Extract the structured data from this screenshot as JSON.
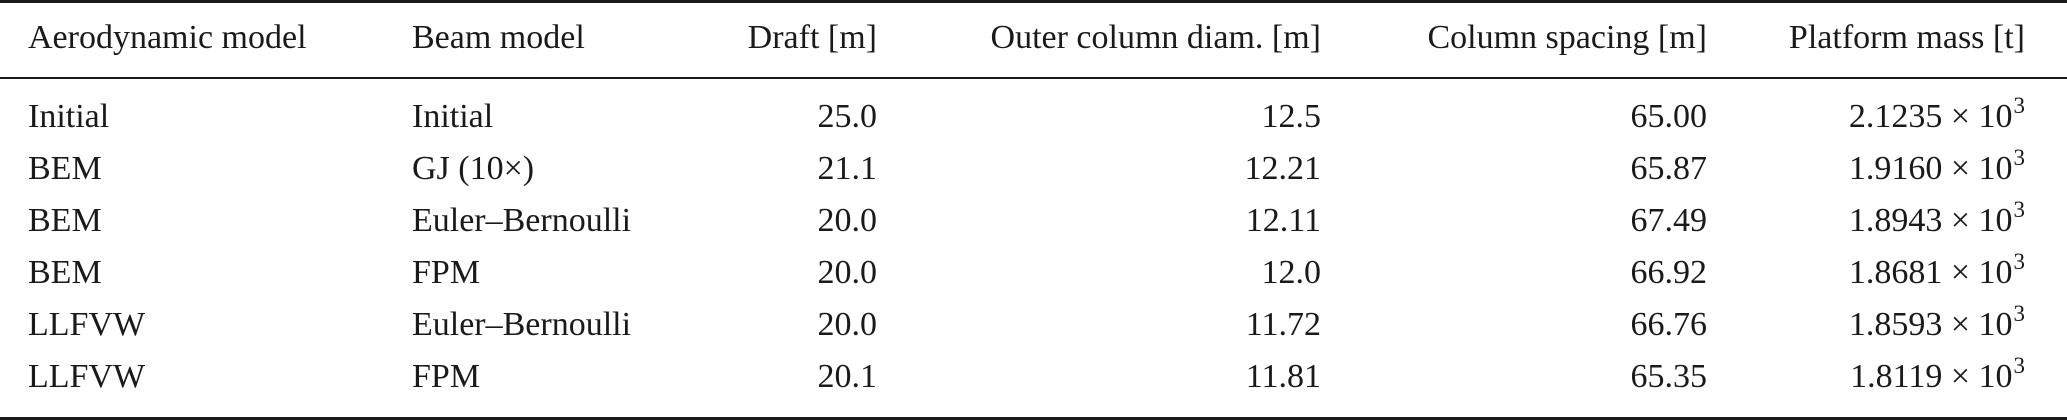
{
  "table": {
    "headers": [
      "Aerodynamic model",
      "Beam model",
      "Draft [m]",
      "Outer column diam. [m]",
      "Column spacing [m]",
      "Platform mass [t]"
    ],
    "rows": [
      {
        "aero": "Initial",
        "beam": "Initial",
        "draft": "25.0",
        "diam": "12.5",
        "spacing": "65.00",
        "mass_base": "2.1235 × 10",
        "mass_exp": "3"
      },
      {
        "aero": "BEM",
        "beam": "GJ (10×)",
        "draft": "21.1",
        "diam": "12.21",
        "spacing": "65.87",
        "mass_base": "1.9160 × 10",
        "mass_exp": "3"
      },
      {
        "aero": "BEM",
        "beam": "Euler–Bernoulli",
        "draft": "20.0",
        "diam": "12.11",
        "spacing": "67.49",
        "mass_base": "1.8943 × 10",
        "mass_exp": "3"
      },
      {
        "aero": "BEM",
        "beam": "FPM",
        "draft": "20.0",
        "diam": "12.0",
        "spacing": "66.92",
        "mass_base": "1.8681 × 10",
        "mass_exp": "3"
      },
      {
        "aero": "LLFVW",
        "beam": "Euler–Bernoulli",
        "draft": "20.0",
        "diam": "11.72",
        "spacing": "66.76",
        "mass_base": "1.8593 × 10",
        "mass_exp": "3"
      },
      {
        "aero": "LLFVW",
        "beam": "FPM",
        "draft": "20.1",
        "diam": "11.81",
        "spacing": "65.35",
        "mass_base": "1.8119 × 10",
        "mass_exp": "3"
      }
    ]
  }
}
